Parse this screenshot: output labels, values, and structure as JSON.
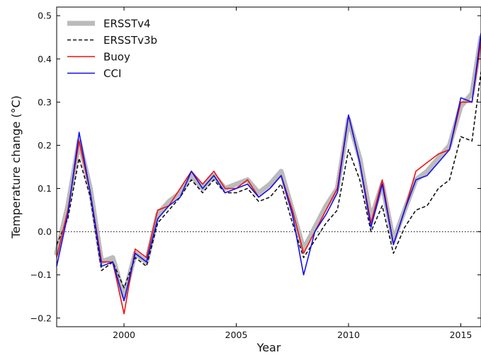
{
  "chart_data": {
    "type": "line",
    "xlabel": "Year",
    "ylabel": "Temperature change (°C)",
    "xlim": [
      1997.0,
      2015.9
    ],
    "ylim": [
      -0.22,
      0.52
    ],
    "xticks": [
      2000,
      2005,
      2010,
      2015
    ],
    "yticks": [
      -0.2,
      -0.1,
      0.0,
      0.1,
      0.2,
      0.3,
      0.4,
      0.5
    ],
    "xtick_labels": [
      "2000",
      "2005",
      "2010",
      "2015"
    ],
    "ytick_labels": [
      "−0.2",
      "−0.1",
      "0.0",
      "0.1",
      "0.2",
      "0.3",
      "0.4",
      "0.5"
    ],
    "reference_line": {
      "y": 0.0,
      "style": "dotted"
    },
    "legend_position": "top-left",
    "grid": false,
    "x": [
      1997.0,
      1997.5,
      1998.0,
      1998.5,
      1999.0,
      1999.5,
      2000.0,
      2000.5,
      2001.0,
      2001.5,
      2002.0,
      2002.5,
      2003.0,
      2003.5,
      2004.0,
      2004.5,
      2005.0,
      2005.5,
      2006.0,
      2006.5,
      2007.0,
      2007.5,
      2008.0,
      2008.5,
      2009.0,
      2009.5,
      2010.0,
      2010.5,
      2011.0,
      2011.5,
      2012.0,
      2012.5,
      2013.0,
      2013.5,
      2014.0,
      2014.5,
      2015.0,
      2015.5,
      2015.9
    ],
    "series": [
      {
        "name": "ERSSTv4",
        "color": "#bbbbbb",
        "style": "thick",
        "values": [
          -0.05,
          0.06,
          0.21,
          0.1,
          -0.07,
          -0.06,
          -0.15,
          -0.05,
          -0.07,
          0.04,
          0.07,
          0.09,
          0.13,
          0.1,
          0.13,
          0.1,
          0.11,
          0.12,
          0.09,
          0.11,
          0.14,
          0.05,
          -0.04,
          0.01,
          0.06,
          0.1,
          0.26,
          0.17,
          0.03,
          0.11,
          -0.02,
          0.05,
          0.12,
          0.14,
          0.17,
          0.2,
          0.29,
          0.32,
          0.45
        ]
      },
      {
        "name": "ERSSTv3b",
        "color": "#111111",
        "style": "dashed",
        "values": [
          -0.03,
          0.03,
          0.17,
          0.08,
          -0.09,
          -0.07,
          -0.13,
          -0.06,
          -0.08,
          0.02,
          0.05,
          0.08,
          0.12,
          0.09,
          0.12,
          0.09,
          0.09,
          0.1,
          0.07,
          0.08,
          0.11,
          0.02,
          -0.06,
          -0.02,
          0.02,
          0.05,
          0.19,
          0.12,
          0.0,
          0.06,
          -0.05,
          0.01,
          0.05,
          0.06,
          0.1,
          0.12,
          0.22,
          0.21,
          0.37
        ]
      },
      {
        "name": "Buoy",
        "color": "#ee1111",
        "style": "solid",
        "values": [
          -0.06,
          0.05,
          0.21,
          0.09,
          -0.07,
          -0.07,
          -0.19,
          -0.04,
          -0.06,
          0.05,
          0.06,
          0.1,
          0.14,
          0.11,
          0.14,
          0.1,
          0.1,
          0.12,
          0.08,
          0.1,
          0.13,
          0.05,
          -0.05,
          0.0,
          0.05,
          0.1,
          0.27,
          0.16,
          0.02,
          0.12,
          -0.03,
          0.05,
          0.14,
          0.16,
          0.18,
          0.19,
          0.3,
          0.3,
          0.44
        ]
      },
      {
        "name": "CCI",
        "color": "#1111ee",
        "style": "solid",
        "values": [
          -0.08,
          0.04,
          0.23,
          0.09,
          -0.08,
          -0.07,
          -0.16,
          -0.05,
          -0.07,
          0.03,
          0.06,
          0.08,
          0.14,
          0.1,
          0.13,
          0.09,
          0.1,
          0.11,
          0.08,
          0.1,
          0.13,
          0.04,
          -0.1,
          0.0,
          0.04,
          0.09,
          0.27,
          0.16,
          0.01,
          0.11,
          -0.03,
          0.05,
          0.12,
          0.13,
          0.16,
          0.19,
          0.31,
          0.3,
          0.46
        ]
      }
    ]
  }
}
